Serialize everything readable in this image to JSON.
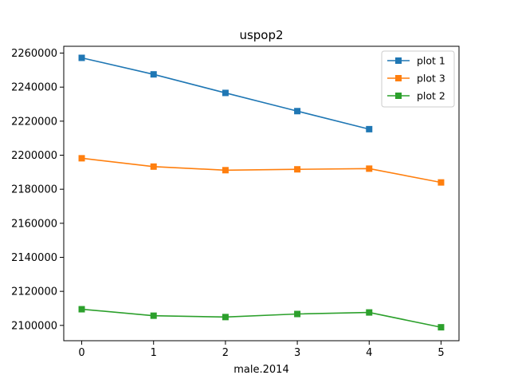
{
  "chart_data": {
    "type": "line",
    "title": "uspop2",
    "xlabel": "male.2014",
    "ylabel": "",
    "x": [
      0,
      1,
      2,
      3,
      4,
      5
    ],
    "xlim": [
      -0.25,
      5.25
    ],
    "ylim": [
      2091000,
      2264000
    ],
    "xticks": [
      0,
      1,
      2,
      3,
      4,
      5
    ],
    "yticks": [
      2100000,
      2120000,
      2140000,
      2160000,
      2180000,
      2200000,
      2220000,
      2240000,
      2260000
    ],
    "grid": false,
    "legend_position": "top-right",
    "marker": "square",
    "series": [
      {
        "name": "plot 1",
        "color": "#1f77b4",
        "values": [
          2257200,
          2247500,
          2236600,
          2225900,
          2215300,
          null
        ]
      },
      {
        "name": "plot 3",
        "color": "#ff7f0e",
        "values": [
          2198200,
          2193300,
          2191200,
          2191700,
          2192100,
          2184000
        ]
      },
      {
        "name": "plot 2",
        "color": "#2ca02c",
        "values": [
          2109500,
          2105700,
          2104900,
          2106700,
          2107600,
          2098900
        ]
      }
    ]
  }
}
